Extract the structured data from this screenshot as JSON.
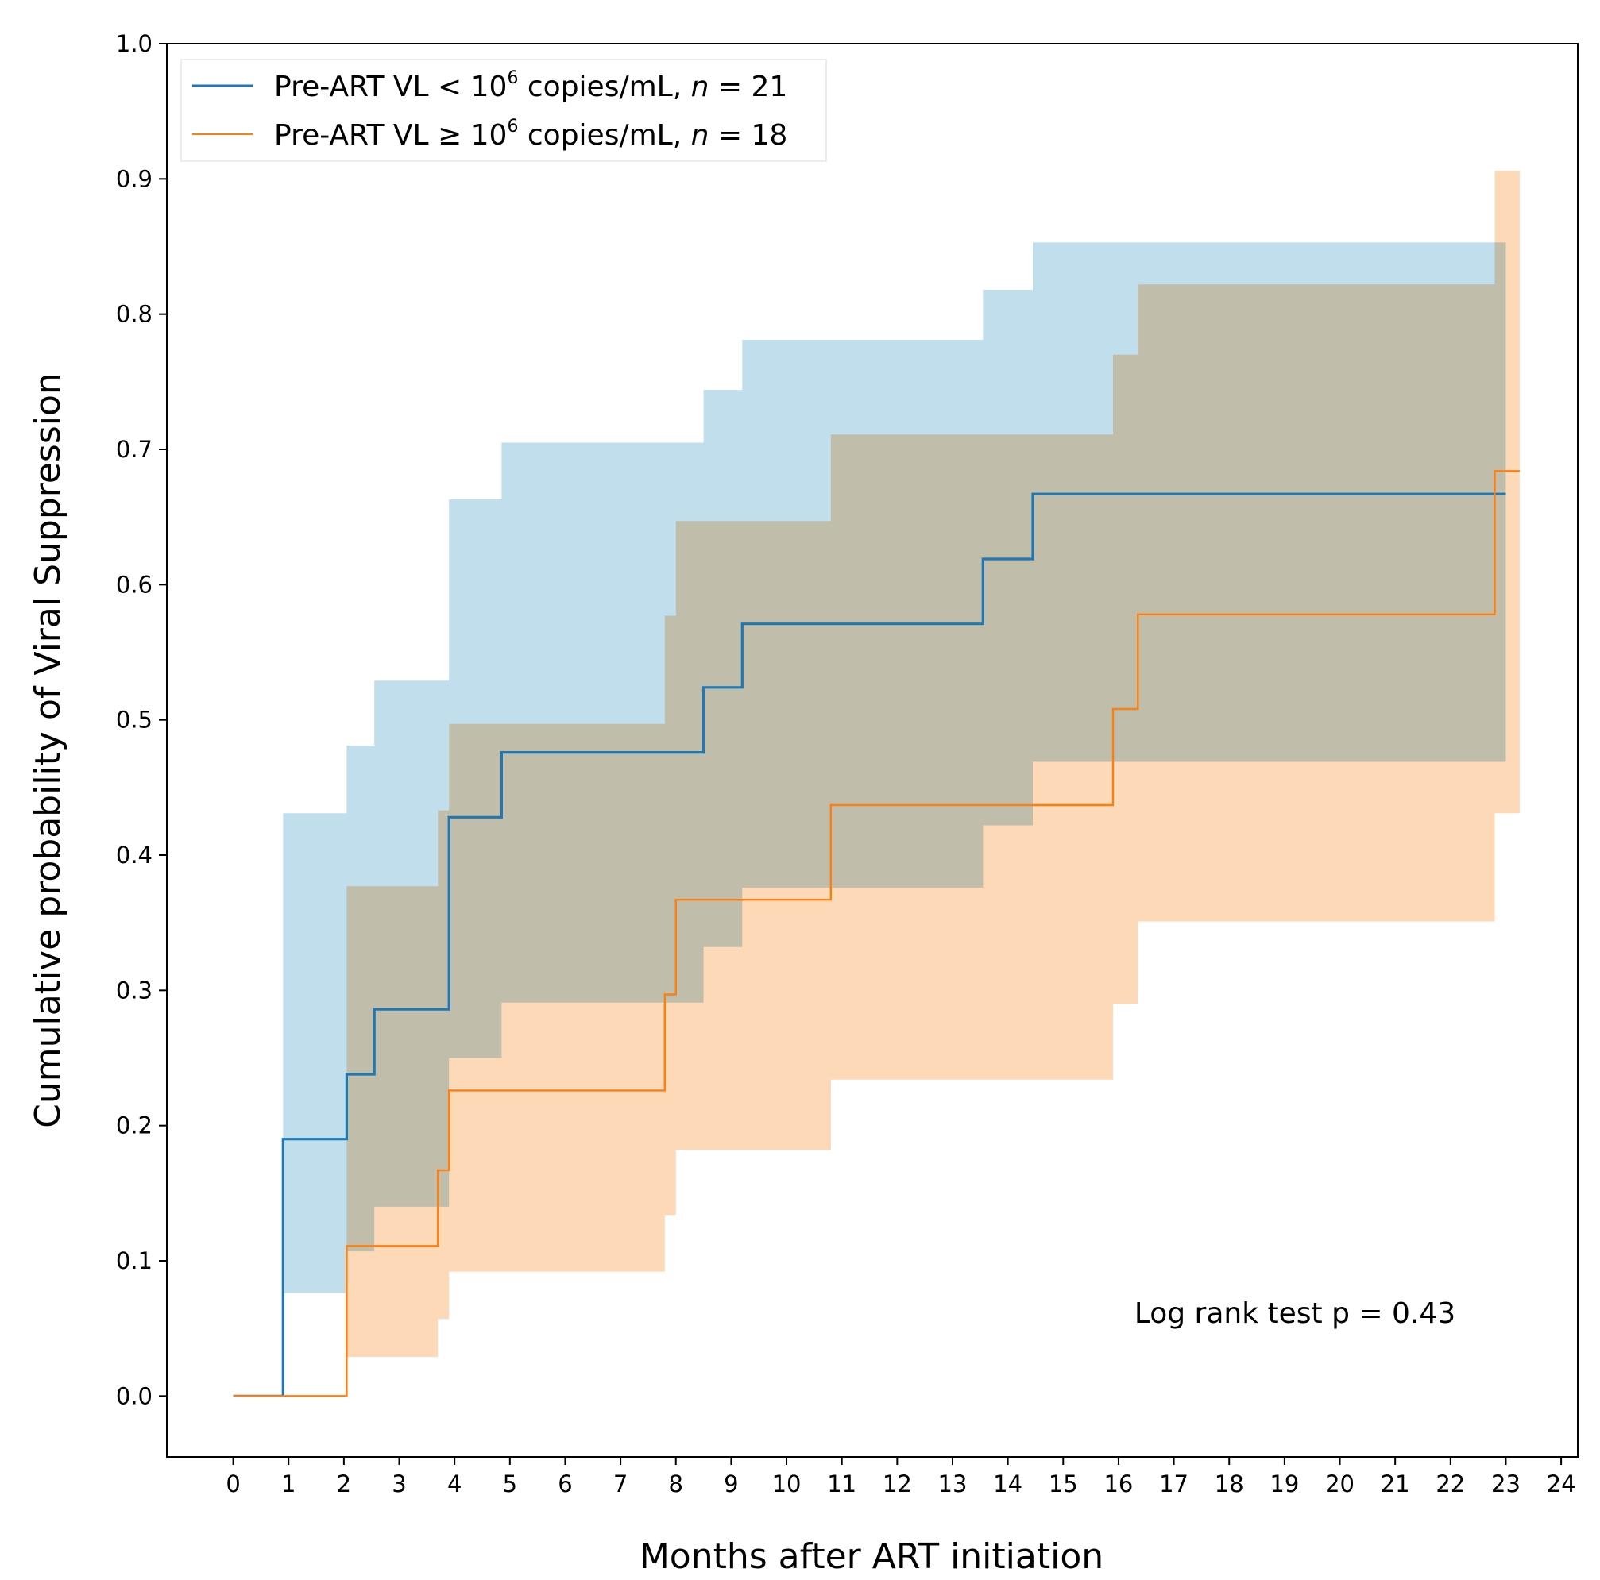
{
  "chart_data": {
    "type": "line",
    "subtype": "kaplan-meier-step",
    "title": "",
    "xlabel": "Months after ART initiation",
    "ylabel": "Cumulative probability of Viral Suppression",
    "xlim": [
      -1.2,
      24.3
    ],
    "ylim": [
      -0.045,
      1.0
    ],
    "xticks": [
      0,
      1,
      2,
      3,
      4,
      5,
      6,
      7,
      8,
      9,
      10,
      11,
      12,
      13,
      14,
      15,
      16,
      17,
      18,
      19,
      20,
      21,
      22,
      23,
      24
    ],
    "xtick_labels": [
      "0",
      "1",
      "2",
      "3",
      "4",
      "5",
      "6",
      "7",
      "8",
      "9",
      "10",
      "11",
      "12",
      "13",
      "14",
      "15",
      "16",
      "17",
      "18",
      "19",
      "20",
      "21",
      "22",
      "23",
      "24"
    ],
    "yticks": [
      0.0,
      0.1,
      0.2,
      0.3,
      0.4,
      0.5,
      0.6,
      0.7,
      0.8,
      0.9,
      1.0
    ],
    "ytick_labels": [
      "0.0",
      "0.1",
      "0.2",
      "0.3",
      "0.4",
      "0.5",
      "0.6",
      "0.7",
      "0.8",
      "0.9",
      "1.0"
    ],
    "grid": false,
    "legend_position": "top-left",
    "series": [
      {
        "name": "low-vl",
        "legend_main": "Pre-ART VL < 10",
        "legend_exp": "6",
        "legend_tail": " copies/mL, ",
        "legend_n": "n",
        "legend_count": " = 21",
        "color": "#1f77b4",
        "band_color": "#a6d0e6",
        "end_x": 23.0,
        "steps": [
          [
            0.0,
            0.0
          ],
          [
            0.9,
            0.19
          ],
          [
            2.05,
            0.238
          ],
          [
            2.55,
            0.286
          ],
          [
            3.9,
            0.428
          ],
          [
            4.85,
            0.476
          ],
          [
            8.5,
            0.524
          ],
          [
            9.2,
            0.571
          ],
          [
            13.55,
            0.619
          ],
          [
            14.45,
            0.667
          ]
        ],
        "band_steps": [
          [
            0.9,
            0.076,
            0.431
          ],
          [
            2.05,
            0.107,
            0.481
          ],
          [
            2.55,
            0.14,
            0.529
          ],
          [
            3.9,
            0.25,
            0.663
          ],
          [
            4.85,
            0.291,
            0.705
          ],
          [
            8.5,
            0.332,
            0.744
          ],
          [
            9.2,
            0.376,
            0.781
          ],
          [
            13.55,
            0.422,
            0.818
          ],
          [
            14.45,
            0.469,
            0.853
          ]
        ]
      },
      {
        "name": "high-vl",
        "legend_main": "Pre-ART VL ≥ 10",
        "legend_exp": "6",
        "legend_tail": " copies/mL, ",
        "legend_n": "n",
        "legend_count": " = 18",
        "color": "#ff7f0e",
        "band_color": "#fdc999",
        "end_x": 23.25,
        "steps": [
          [
            0.0,
            0.0
          ],
          [
            2.05,
            0.111
          ],
          [
            3.7,
            0.167
          ],
          [
            3.9,
            0.226
          ],
          [
            7.8,
            0.297
          ],
          [
            8.0,
            0.367
          ],
          [
            10.8,
            0.437
          ],
          [
            15.9,
            0.508
          ],
          [
            16.35,
            0.578
          ],
          [
            22.8,
            0.684
          ]
        ],
        "band_steps": [
          [
            2.05,
            0.029,
            0.377
          ],
          [
            3.7,
            0.057,
            0.433
          ],
          [
            3.9,
            0.092,
            0.497
          ],
          [
            7.8,
            0.134,
            0.577
          ],
          [
            8.0,
            0.182,
            0.647
          ],
          [
            10.8,
            0.234,
            0.711
          ],
          [
            15.9,
            0.29,
            0.77
          ],
          [
            16.35,
            0.351,
            0.822
          ],
          [
            22.8,
            0.431,
            0.906
          ]
        ]
      }
    ],
    "annotation": "Log rank test p = 0.43"
  }
}
